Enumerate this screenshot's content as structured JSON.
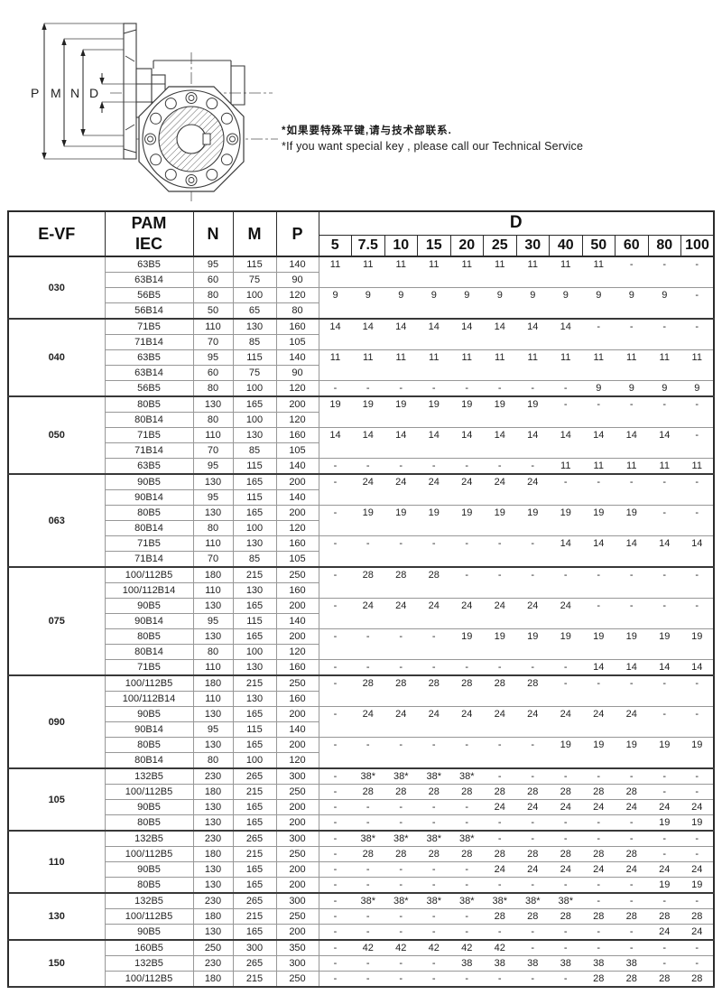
{
  "note": {
    "line_zh": "*如果要特殊平键,请与技术部联系.",
    "line_en": "*If you want  special key , please call our Technical Service"
  },
  "drawing": {
    "labels": [
      "P",
      "M",
      "N",
      "D"
    ]
  },
  "colors": {
    "border_dark": "#2b2b2b",
    "border_light": "#979797",
    "text": "#1a1a1a"
  },
  "table": {
    "headers": {
      "model": "E-VF",
      "pam_line1": "PAM",
      "pam_line2": "IEC",
      "n": "N",
      "m": "M",
      "p": "P",
      "d": "D",
      "d_columns": [
        "5",
        "7.5",
        "10",
        "15",
        "20",
        "25",
        "30",
        "40",
        "50",
        "60",
        "80",
        "100"
      ]
    },
    "groups": [
      {
        "model": "030",
        "rows": [
          {
            "pam": "63B5",
            "n": "95",
            "m": "115",
            "p": "140"
          },
          {
            "pam": "63B14",
            "n": "60",
            "m": "75",
            "p": "90"
          },
          {
            "pam": "56B5",
            "n": "80",
            "m": "100",
            "p": "120"
          },
          {
            "pam": "56B14",
            "n": "50",
            "m": "65",
            "p": "80"
          }
        ],
        "bands": [
          {
            "span": 2,
            "values": [
              "11",
              "11",
              "11",
              "11",
              "11",
              "11",
              "11",
              "11",
              "11",
              "-",
              "-",
              "-"
            ]
          },
          {
            "span": 2,
            "values": [
              "9",
              "9",
              "9",
              "9",
              "9",
              "9",
              "9",
              "9",
              "9",
              "9",
              "9",
              "-"
            ]
          }
        ]
      },
      {
        "model": "040",
        "rows": [
          {
            "pam": "71B5",
            "n": "110",
            "m": "130",
            "p": "160"
          },
          {
            "pam": "71B14",
            "n": "70",
            "m": "85",
            "p": "105"
          },
          {
            "pam": "63B5",
            "n": "95",
            "m": "115",
            "p": "140"
          },
          {
            "pam": "63B14",
            "n": "60",
            "m": "75",
            "p": "90"
          },
          {
            "pam": "56B5",
            "n": "80",
            "m": "100",
            "p": "120"
          }
        ],
        "bands": [
          {
            "span": 2,
            "values": [
              "14",
              "14",
              "14",
              "14",
              "14",
              "14",
              "14",
              "14",
              "-",
              "-",
              "-",
              "-"
            ]
          },
          {
            "span": 2,
            "values": [
              "11",
              "11",
              "11",
              "11",
              "11",
              "11",
              "11",
              "11",
              "11",
              "11",
              "11",
              "11"
            ]
          },
          {
            "span": 1,
            "values": [
              "-",
              "-",
              "-",
              "-",
              "-",
              "-",
              "-",
              "-",
              "9",
              "9",
              "9",
              "9"
            ]
          }
        ]
      },
      {
        "model": "050",
        "rows": [
          {
            "pam": "80B5",
            "n": "130",
            "m": "165",
            "p": "200"
          },
          {
            "pam": "80B14",
            "n": "80",
            "m": "100",
            "p": "120"
          },
          {
            "pam": "71B5",
            "n": "110",
            "m": "130",
            "p": "160"
          },
          {
            "pam": "71B14",
            "n": "70",
            "m": "85",
            "p": "105"
          },
          {
            "pam": "63B5",
            "n": "95",
            "m": "115",
            "p": "140"
          }
        ],
        "bands": [
          {
            "span": 2,
            "values": [
              "19",
              "19",
              "19",
              "19",
              "19",
              "19",
              "19",
              "-",
              "-",
              "-",
              "-",
              "-"
            ]
          },
          {
            "span": 2,
            "values": [
              "14",
              "14",
              "14",
              "14",
              "14",
              "14",
              "14",
              "14",
              "14",
              "14",
              "14",
              "-"
            ]
          },
          {
            "span": 1,
            "values": [
              "-",
              "-",
              "-",
              "-",
              "-",
              "-",
              "-",
              "11",
              "11",
              "11",
              "11",
              "11"
            ]
          }
        ]
      },
      {
        "model": "063",
        "rows": [
          {
            "pam": "90B5",
            "n": "130",
            "m": "165",
            "p": "200"
          },
          {
            "pam": "90B14",
            "n": "95",
            "m": "115",
            "p": "140"
          },
          {
            "pam": "80B5",
            "n": "130",
            "m": "165",
            "p": "200"
          },
          {
            "pam": "80B14",
            "n": "80",
            "m": "100",
            "p": "120"
          },
          {
            "pam": "71B5",
            "n": "110",
            "m": "130",
            "p": "160"
          },
          {
            "pam": "71B14",
            "n": "70",
            "m": "85",
            "p": "105"
          }
        ],
        "bands": [
          {
            "span": 2,
            "values": [
              "-",
              "24",
              "24",
              "24",
              "24",
              "24",
              "24",
              "-",
              "-",
              "-",
              "-",
              "-"
            ]
          },
          {
            "span": 2,
            "values": [
              "-",
              "19",
              "19",
              "19",
              "19",
              "19",
              "19",
              "19",
              "19",
              "19",
              "-",
              "-"
            ]
          },
          {
            "span": 2,
            "values": [
              "-",
              "-",
              "-",
              "-",
              "-",
              "-",
              "-",
              "14",
              "14",
              "14",
              "14",
              "14"
            ]
          }
        ]
      },
      {
        "model": "075",
        "rows": [
          {
            "pam": "100/112B5",
            "n": "180",
            "m": "215",
            "p": "250"
          },
          {
            "pam": "100/112B14",
            "n": "110",
            "m": "130",
            "p": "160"
          },
          {
            "pam": "90B5",
            "n": "130",
            "m": "165",
            "p": "200"
          },
          {
            "pam": "90B14",
            "n": "95",
            "m": "115",
            "p": "140"
          },
          {
            "pam": "80B5",
            "n": "130",
            "m": "165",
            "p": "200"
          },
          {
            "pam": "80B14",
            "n": "80",
            "m": "100",
            "p": "120"
          },
          {
            "pam": "71B5",
            "n": "110",
            "m": "130",
            "p": "160"
          }
        ],
        "bands": [
          {
            "span": 2,
            "values": [
              "-",
              "28",
              "28",
              "28",
              "-",
              "-",
              "-",
              "-",
              "-",
              "-",
              "-",
              "-"
            ]
          },
          {
            "span": 2,
            "values": [
              "-",
              "24",
              "24",
              "24",
              "24",
              "24",
              "24",
              "24",
              "-",
              "-",
              "-",
              "-"
            ]
          },
          {
            "span": 2,
            "values": [
              "-",
              "-",
              "-",
              "-",
              "19",
              "19",
              "19",
              "19",
              "19",
              "19",
              "19",
              "19"
            ]
          },
          {
            "span": 1,
            "values": [
              "-",
              "-",
              "-",
              "-",
              "-",
              "-",
              "-",
              "-",
              "14",
              "14",
              "14",
              "14"
            ]
          }
        ]
      },
      {
        "model": "090",
        "rows": [
          {
            "pam": "100/112B5",
            "n": "180",
            "m": "215",
            "p": "250"
          },
          {
            "pam": "100/112B14",
            "n": "110",
            "m": "130",
            "p": "160"
          },
          {
            "pam": "90B5",
            "n": "130",
            "m": "165",
            "p": "200"
          },
          {
            "pam": "90B14",
            "n": "95",
            "m": "115",
            "p": "140"
          },
          {
            "pam": "80B5",
            "n": "130",
            "m": "165",
            "p": "200"
          },
          {
            "pam": "80B14",
            "n": "80",
            "m": "100",
            "p": "120"
          }
        ],
        "bands": [
          {
            "span": 2,
            "values": [
              "-",
              "28",
              "28",
              "28",
              "28",
              "28",
              "28",
              "-",
              "-",
              "-",
              "-",
              "-"
            ]
          },
          {
            "span": 2,
            "values": [
              "-",
              "24",
              "24",
              "24",
              "24",
              "24",
              "24",
              "24",
              "24",
              "24",
              "-",
              "-"
            ]
          },
          {
            "span": 2,
            "values": [
              "-",
              "-",
              "-",
              "-",
              "-",
              "-",
              "-",
              "19",
              "19",
              "19",
              "19",
              "19"
            ]
          }
        ]
      },
      {
        "model": "105",
        "rows": [
          {
            "pam": "132B5",
            "n": "230",
            "m": "265",
            "p": "300"
          },
          {
            "pam": "100/112B5",
            "n": "180",
            "m": "215",
            "p": "250"
          },
          {
            "pam": "90B5",
            "n": "130",
            "m": "165",
            "p": "200"
          },
          {
            "pam": "80B5",
            "n": "130",
            "m": "165",
            "p": "200"
          }
        ],
        "bands": [
          {
            "span": 1,
            "values": [
              "-",
              "38*",
              "38*",
              "38*",
              "38*",
              "-",
              "-",
              "-",
              "-",
              "-",
              "-",
              "-"
            ]
          },
          {
            "span": 1,
            "values": [
              "-",
              "28",
              "28",
              "28",
              "28",
              "28",
              "28",
              "28",
              "28",
              "28",
              "-",
              "-"
            ]
          },
          {
            "span": 1,
            "values": [
              "-",
              "-",
              "-",
              "-",
              "-",
              "24",
              "24",
              "24",
              "24",
              "24",
              "24",
              "24"
            ]
          },
          {
            "span": 1,
            "values": [
              "-",
              "-",
              "-",
              "-",
              "-",
              "-",
              "-",
              "-",
              "-",
              "-",
              "19",
              "19"
            ]
          }
        ]
      },
      {
        "model": "110",
        "rows": [
          {
            "pam": "132B5",
            "n": "230",
            "m": "265",
            "p": "300"
          },
          {
            "pam": "100/112B5",
            "n": "180",
            "m": "215",
            "p": "250"
          },
          {
            "pam": "90B5",
            "n": "130",
            "m": "165",
            "p": "200"
          },
          {
            "pam": "80B5",
            "n": "130",
            "m": "165",
            "p": "200"
          }
        ],
        "bands": [
          {
            "span": 1,
            "values": [
              "-",
              "38*",
              "38*",
              "38*",
              "38*",
              "-",
              "-",
              "-",
              "-",
              "-",
              "-",
              "-"
            ]
          },
          {
            "span": 1,
            "values": [
              "-",
              "28",
              "28",
              "28",
              "28",
              "28",
              "28",
              "28",
              "28",
              "28",
              "-",
              "-"
            ]
          },
          {
            "span": 1,
            "values": [
              "-",
              "-",
              "-",
              "-",
              "-",
              "24",
              "24",
              "24",
              "24",
              "24",
              "24",
              "24"
            ]
          },
          {
            "span": 1,
            "values": [
              "-",
              "-",
              "-",
              "-",
              "-",
              "-",
              "-",
              "-",
              "-",
              "-",
              "19",
              "19"
            ]
          }
        ]
      },
      {
        "model": "130",
        "rows": [
          {
            "pam": "132B5",
            "n": "230",
            "m": "265",
            "p": "300"
          },
          {
            "pam": "100/112B5",
            "n": "180",
            "m": "215",
            "p": "250"
          },
          {
            "pam": "90B5",
            "n": "130",
            "m": "165",
            "p": "200"
          }
        ],
        "bands": [
          {
            "span": 1,
            "values": [
              "-",
              "38*",
              "38*",
              "38*",
              "38*",
              "38*",
              "38*",
              "38*",
              "-",
              "-",
              "-",
              "-"
            ]
          },
          {
            "span": 1,
            "values": [
              "-",
              "-",
              "-",
              "-",
              "-",
              "28",
              "28",
              "28",
              "28",
              "28",
              "28",
              "28"
            ]
          },
          {
            "span": 1,
            "values": [
              "-",
              "-",
              "-",
              "-",
              "-",
              "-",
              "-",
              "-",
              "-",
              "-",
              "24",
              "24"
            ]
          }
        ]
      },
      {
        "model": "150",
        "rows": [
          {
            "pam": "160B5",
            "n": "250",
            "m": "300",
            "p": "350"
          },
          {
            "pam": "132B5",
            "n": "230",
            "m": "265",
            "p": "300"
          },
          {
            "pam": "100/112B5",
            "n": "180",
            "m": "215",
            "p": "250"
          }
        ],
        "bands": [
          {
            "span": 1,
            "values": [
              "-",
              "42",
              "42",
              "42",
              "42",
              "42",
              "-",
              "-",
              "-",
              "-",
              "-",
              "-"
            ]
          },
          {
            "span": 1,
            "values": [
              "-",
              "-",
              "-",
              "-",
              "38",
              "38",
              "38",
              "38",
              "38",
              "38",
              "-",
              "-"
            ]
          },
          {
            "span": 1,
            "values": [
              "-",
              "-",
              "-",
              "-",
              "-",
              "-",
              "-",
              "-",
              "28",
              "28",
              "28",
              "28"
            ]
          }
        ]
      }
    ]
  }
}
